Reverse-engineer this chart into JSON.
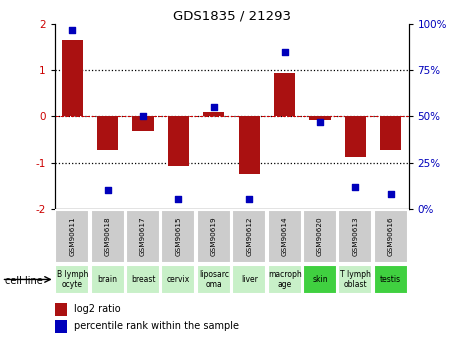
{
  "title": "GDS1835 / 21293",
  "gsm_labels": [
    "GSM90611",
    "GSM90618",
    "GSM90617",
    "GSM90615",
    "GSM90619",
    "GSM90612",
    "GSM90614",
    "GSM90620",
    "GSM90613",
    "GSM90616"
  ],
  "cell_lines": [
    "B lymph\nocyte",
    "brain",
    "breast",
    "cervix",
    "liposarc\noma",
    "liver",
    "macroph\nage",
    "skin",
    "T lymph\noblast",
    "testis"
  ],
  "cell_line_colors": [
    "#c8f0c8",
    "#c8f0c8",
    "#c8f0c8",
    "#c8f0c8",
    "#c8f0c8",
    "#c8f0c8",
    "#c8f0c8",
    "#40d040",
    "#c8f0c8",
    "#40d040"
  ],
  "log2_ratio": [
    1.65,
    -0.72,
    -0.32,
    -1.08,
    0.1,
    -1.25,
    0.95,
    -0.07,
    -0.88,
    -0.72
  ],
  "percentile_rank": [
    97,
    10,
    50,
    5,
    55,
    5,
    85,
    47,
    12,
    8
  ],
  "ylim": [
    -2,
    2
  ],
  "y2lim": [
    0,
    100
  ],
  "bar_color": "#aa1111",
  "dot_color": "#0000bb",
  "dotted_line_color": "#000000",
  "zero_line_color": "#cc0000",
  "bg_color": "#ffffff",
  "gsm_bg_color": "#cccccc",
  "ytick_color": "#cc0000",
  "y2tick_color": "#0000bb"
}
